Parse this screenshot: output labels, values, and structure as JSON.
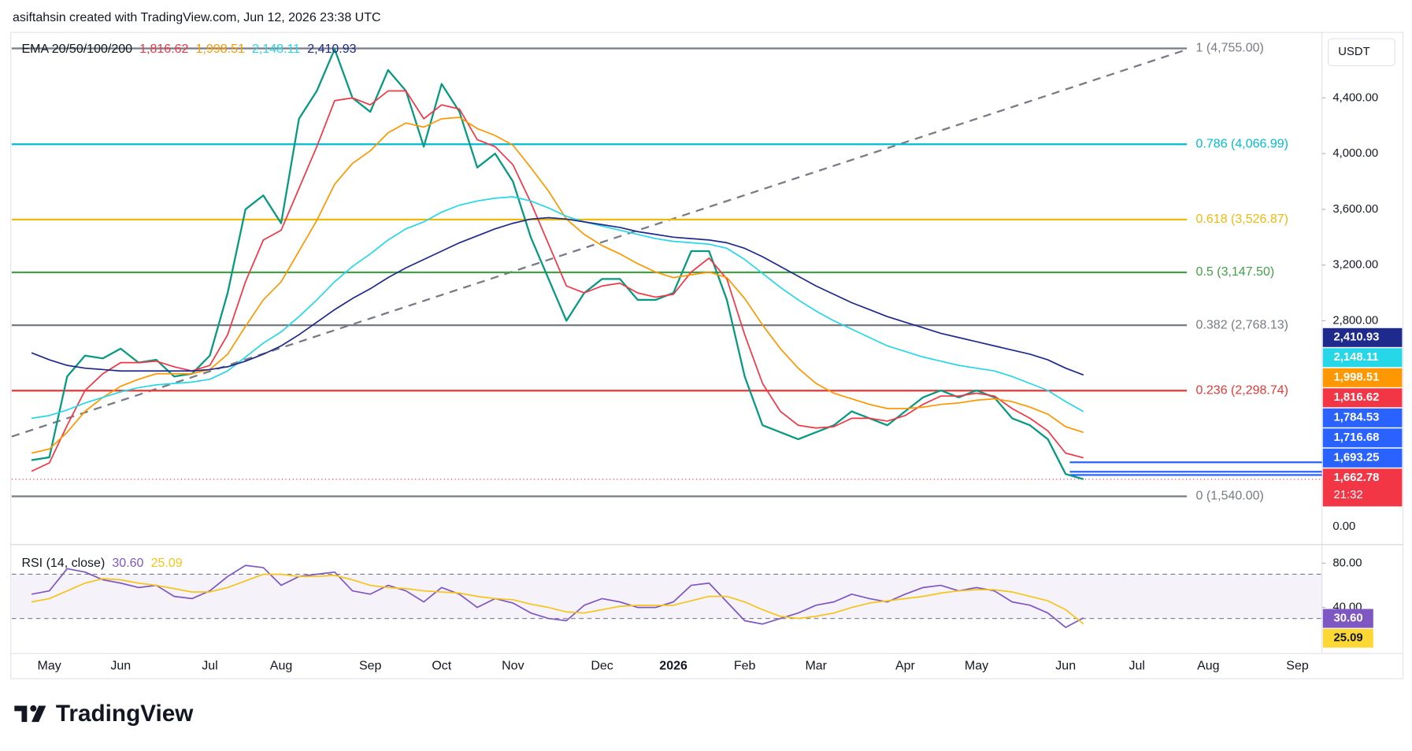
{
  "header": {
    "text": "asiftahsin created with TradingView.com, Jun 12, 2026 23:38 UTC"
  },
  "footer": {
    "brand": "TradingView"
  },
  "chart_data": [
    {
      "type": "line",
      "legend_title": "EMA 20/50/100/200",
      "currency": "USDT",
      "axis_bottom_label": "0.00",
      "categories": [
        null,
        "May",
        null,
        null,
        null,
        "Jun",
        null,
        null,
        null,
        null,
        "Jul",
        null,
        null,
        null,
        "Aug",
        null,
        null,
        null,
        null,
        "Sep",
        null,
        null,
        null,
        "Oct",
        null,
        null,
        null,
        "Nov",
        null,
        null,
        null,
        null,
        "Dec",
        null,
        null,
        null,
        "2026",
        null,
        null,
        null,
        "Feb",
        null,
        null,
        null,
        "Mar",
        null,
        null,
        null,
        null,
        "Apr",
        null,
        null,
        null,
        "May",
        null,
        null,
        null,
        null,
        "Jun",
        null,
        null,
        null,
        "Jul",
        null,
        null,
        null,
        "Aug",
        null,
        null,
        null,
        null,
        "Sep",
        null,
        null,
        null
      ],
      "series": [
        {
          "color": "#089981",
          "values": [
            1800,
            1820,
            2400,
            2550,
            2530,
            2600,
            2500,
            2520,
            2400,
            2420,
            2550,
            3000,
            3600,
            3700,
            3500,
            4250,
            4450,
            4750,
            4400,
            4300,
            4600,
            4450,
            4050,
            4500,
            4300,
            3900,
            4000,
            3800,
            3400,
            3100,
            2800,
            3000,
            3100,
            3100,
            2950,
            2950,
            3000,
            3300,
            3300,
            2950,
            2400,
            2050,
            2000,
            1950,
            2000,
            2050,
            2150,
            2100,
            2050,
            2150,
            2250,
            2300,
            2250,
            2300,
            2250,
            2100,
            2050,
            1950,
            1700,
            1662.78,
            null,
            null,
            null,
            null,
            null,
            null,
            null,
            null,
            null,
            null,
            null,
            null,
            null,
            null,
            null
          ]
        },
        {
          "color": "#f23645",
          "values": [
            1720,
            1780,
            2050,
            2300,
            2420,
            2500,
            2500,
            2510,
            2470,
            2440,
            2480,
            2700,
            3080,
            3380,
            3450,
            3750,
            4050,
            4380,
            4400,
            4350,
            4450,
            4450,
            4250,
            4350,
            4320,
            4100,
            4050,
            3920,
            3650,
            3350,
            3050,
            3000,
            3050,
            3070,
            3000,
            2970,
            2990,
            3150,
            3250,
            3100,
            2700,
            2350,
            2150,
            2050,
            2030,
            2040,
            2100,
            2100,
            2080,
            2120,
            2200,
            2260,
            2260,
            2280,
            2260,
            2170,
            2100,
            2010,
            1850,
            1816.62,
            null,
            null,
            null,
            null,
            null,
            null,
            null,
            null,
            null,
            null,
            null,
            null,
            null,
            null,
            null
          ]
        },
        {
          "color": "#ff9800",
          "values": [
            1850,
            1880,
            2000,
            2150,
            2250,
            2330,
            2380,
            2420,
            2420,
            2420,
            2450,
            2560,
            2760,
            2950,
            3080,
            3300,
            3520,
            3780,
            3930,
            4020,
            4150,
            4220,
            4190,
            4250,
            4260,
            4180,
            4130,
            4060,
            3900,
            3730,
            3530,
            3420,
            3340,
            3280,
            3210,
            3150,
            3110,
            3130,
            3150,
            3110,
            2960,
            2770,
            2600,
            2460,
            2350,
            2280,
            2240,
            2200,
            2170,
            2170,
            2180,
            2200,
            2210,
            2230,
            2240,
            2220,
            2180,
            2130,
            2040,
            1998.51,
            null,
            null,
            null,
            null,
            null,
            null,
            null,
            null,
            null,
            null,
            null,
            null,
            null,
            null,
            null
          ]
        },
        {
          "color": "#26d7e8",
          "values": [
            2100,
            2120,
            2160,
            2210,
            2250,
            2290,
            2320,
            2340,
            2350,
            2360,
            2380,
            2440,
            2540,
            2640,
            2720,
            2830,
            2950,
            3080,
            3190,
            3280,
            3380,
            3460,
            3510,
            3580,
            3630,
            3660,
            3680,
            3690,
            3660,
            3610,
            3550,
            3510,
            3480,
            3450,
            3420,
            3390,
            3370,
            3360,
            3350,
            3320,
            3240,
            3140,
            3040,
            2950,
            2870,
            2800,
            2740,
            2680,
            2620,
            2580,
            2540,
            2510,
            2480,
            2460,
            2440,
            2400,
            2350,
            2300,
            2220,
            2148.11,
            null,
            null,
            null,
            null,
            null,
            null,
            null,
            null,
            null,
            null,
            null,
            null,
            null,
            null,
            null
          ]
        },
        {
          "color": "#1e2a8c",
          "values": [
            2570,
            2520,
            2480,
            2460,
            2450,
            2440,
            2440,
            2440,
            2440,
            2440,
            2450,
            2470,
            2510,
            2560,
            2620,
            2700,
            2790,
            2880,
            2960,
            3030,
            3110,
            3180,
            3240,
            3300,
            3360,
            3410,
            3460,
            3500,
            3530,
            3540,
            3530,
            3510,
            3490,
            3470,
            3440,
            3420,
            3400,
            3390,
            3380,
            3360,
            3320,
            3260,
            3190,
            3120,
            3050,
            2990,
            2930,
            2880,
            2830,
            2790,
            2750,
            2710,
            2680,
            2650,
            2620,
            2590,
            2560,
            2520,
            2460,
            2410.93,
            null,
            null,
            null,
            null,
            null,
            null,
            null,
            null,
            null,
            null,
            null,
            null,
            null,
            null,
            null
          ]
        }
      ],
      "ylim": [
        1200,
        4870
      ],
      "yticks": [
        {
          "value": 2800,
          "label": "2,800.00"
        },
        {
          "value": 3200,
          "label": "3,200.00"
        },
        {
          "value": 3600,
          "label": "3,600.00"
        },
        {
          "value": 4000,
          "label": "4,000.00"
        },
        {
          "value": 4400,
          "label": "4,400.00"
        }
      ],
      "fib_levels": [
        {
          "value": 4755,
          "label": "1 (4,755.00)",
          "color": "#787b86"
        },
        {
          "value": 4066.99,
          "label": "0.786 (4,066.99)",
          "color": "#00bcd4"
        },
        {
          "value": 3526.87,
          "label": "0.618 (3,526.87)",
          "color": "#f0b90b"
        },
        {
          "value": 3147.5,
          "label": "0.5 (3,147.50)",
          "color": "#43a047"
        },
        {
          "value": 2768.13,
          "label": "0.382 (2,768.13)",
          "color": "#787b86"
        },
        {
          "value": 2298.74,
          "label": "0.236 (2,298.74)",
          "color": "#e53935"
        },
        {
          "value": 1540,
          "label": "0 (1,540.00)",
          "color": "#787b86"
        }
      ],
      "price_badges": [
        {
          "value": 2410.93,
          "label": "2,410.93",
          "color": "#1e2a8c"
        },
        {
          "value": 2148.11,
          "label": "2,148.11",
          "color": "#26d7e8"
        },
        {
          "value": 1998.51,
          "label": "1,998.51",
          "color": "#ff9800"
        },
        {
          "value": 1816.62,
          "label": "1,816.62",
          "color": "#f23645"
        },
        {
          "value": 1784.53,
          "label": "1,784.53",
          "color": "#2962ff",
          "hline": true
        },
        {
          "value": 1716.68,
          "label": "1,716.68",
          "color": "#2962ff",
          "hline": true
        },
        {
          "value": 1693.25,
          "label": "1,693.25",
          "color": "#2962ff",
          "hline": true
        },
        {
          "value": 1662.78,
          "label": "1,662.78",
          "color": "#f23645",
          "countdown": "21:32"
        }
      ]
    },
    {
      "type": "line",
      "legend_title": "RSI (14, close)",
      "series": [
        {
          "color": "#7e57c2",
          "values": [
            52,
            55,
            75,
            72,
            65,
            62,
            58,
            60,
            50,
            48,
            55,
            68,
            78,
            76,
            60,
            68,
            70,
            72,
            55,
            52,
            60,
            55,
            45,
            58,
            52,
            40,
            48,
            44,
            35,
            30,
            28,
            42,
            48,
            45,
            40,
            40,
            45,
            60,
            62,
            45,
            28,
            25,
            30,
            35,
            42,
            45,
            52,
            48,
            45,
            52,
            58,
            60,
            55,
            58,
            55,
            45,
            42,
            35,
            22,
            30.6,
            null,
            null,
            null,
            null,
            null,
            null,
            null,
            null,
            null,
            null,
            null,
            null,
            null,
            null,
            null
          ]
        },
        {
          "color": "#f5c518",
          "values": [
            45,
            48,
            55,
            62,
            66,
            65,
            62,
            60,
            57,
            54,
            54,
            58,
            64,
            70,
            70,
            68,
            68,
            69,
            65,
            60,
            58,
            57,
            55,
            54,
            53,
            50,
            48,
            47,
            43,
            40,
            36,
            35,
            38,
            41,
            42,
            42,
            42,
            46,
            50,
            50,
            45,
            38,
            32,
            30,
            32,
            35,
            40,
            44,
            46,
            48,
            50,
            53,
            55,
            56,
            56,
            54,
            50,
            46,
            38,
            25.09,
            null,
            null,
            null,
            null,
            null,
            null,
            null,
            null,
            null,
            null,
            null,
            null,
            null,
            null,
            null
          ]
        }
      ],
      "ylim": [
        0,
        96
      ],
      "yticks": [
        {
          "value": 80,
          "label": "80.00"
        },
        {
          "value": 40,
          "label": "40.00"
        }
      ],
      "band": [
        30,
        70
      ],
      "badges": [
        {
          "value": 30.6,
          "label": "30.60",
          "color": "#7e57c2"
        },
        {
          "value": 25.09,
          "label": "25.09",
          "color": "#fdd835"
        }
      ]
    }
  ]
}
